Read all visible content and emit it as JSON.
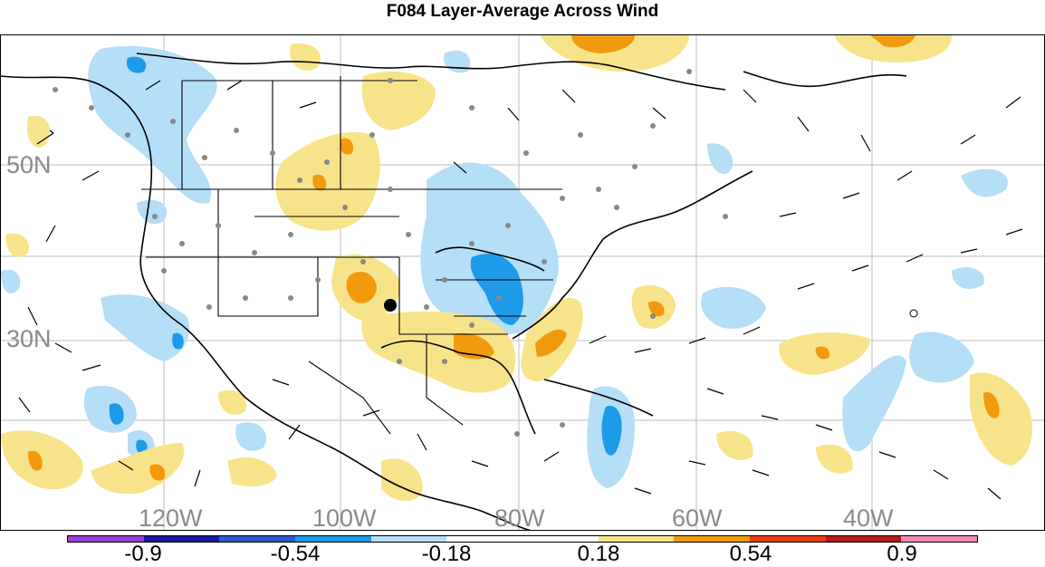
{
  "title": "F084 Layer-Average Across Wind",
  "map": {
    "lat_labels": [
      "50N",
      "30N"
    ],
    "lon_labels": [
      "120W",
      "100W",
      "80W",
      "60W",
      "40W"
    ]
  },
  "colorbar": {
    "colors": [
      "#9b3fd6",
      "#1a1a9c",
      "#2a5bc9",
      "#1e9be8",
      "#b5def7",
      "#ffffff",
      "#ffffff",
      "#f7e48a",
      "#f29a0e",
      "#e8410f",
      "#b61c1c",
      "#f08bb6"
    ],
    "labels": [
      "-0.9",
      "-0.54",
      "-0.18",
      "0.18",
      "0.54",
      "0.9"
    ]
  },
  "colors": {
    "light_blue": "#b5def7",
    "blue": "#1e9be8",
    "light_yellow": "#f7e48a",
    "orange": "#f29a0e",
    "station_dot": "#888888"
  }
}
